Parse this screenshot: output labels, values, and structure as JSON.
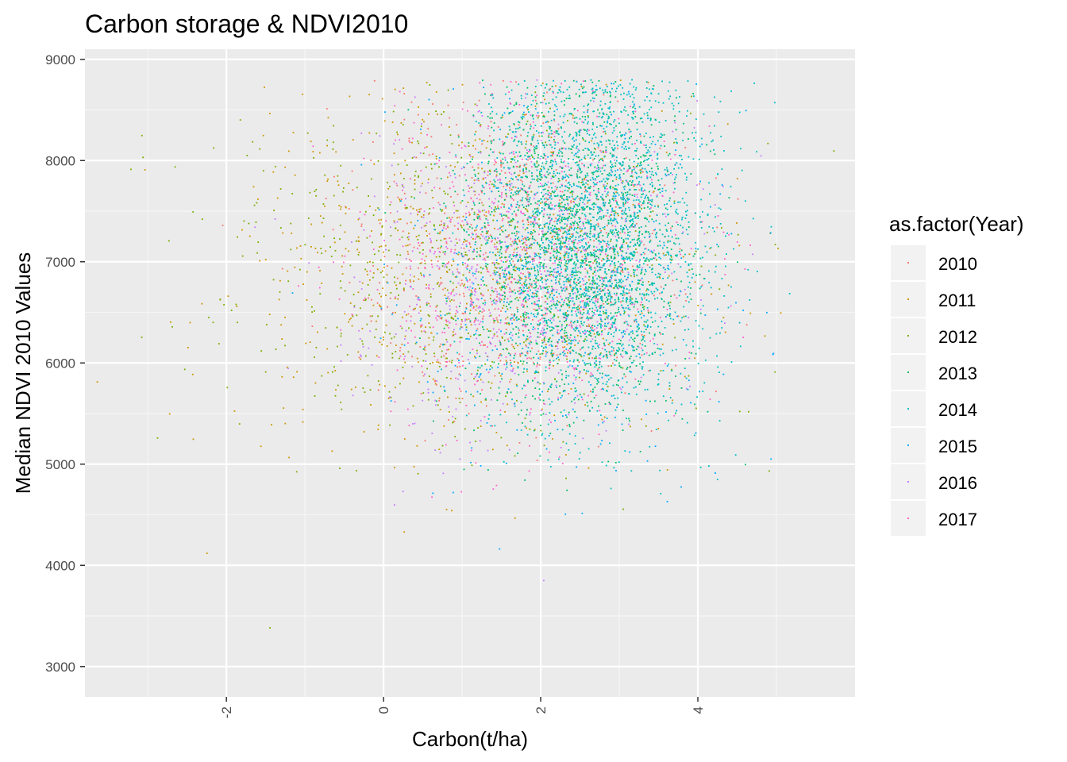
{
  "chart_data": {
    "type": "scatter",
    "title": "Carbon storage & NDVI2010",
    "xlabel": "Carbon(t/ha)",
    "ylabel": "Median NDVI 2010 Values",
    "xlim": [
      -3.8,
      6.0
    ],
    "ylim": [
      2700,
      9100
    ],
    "x_ticks": [
      -2,
      0,
      2,
      4
    ],
    "y_ticks": [
      3000,
      4000,
      5000,
      6000,
      7000,
      8000,
      9000
    ],
    "x_tick_labels": [
      "-2",
      "0",
      "2",
      "4"
    ],
    "y_tick_labels": [
      "3000",
      "4000",
      "5000",
      "6000",
      "7000",
      "8000",
      "9000"
    ],
    "grid": true,
    "legend_title": "as.factor(Year)",
    "legend_position": "right",
    "series": [
      {
        "name": "2010",
        "color": "#F8766D",
        "n_points": 700,
        "center": [
          1.7,
          7050
        ],
        "spread": [
          1.0,
          750
        ]
      },
      {
        "name": "2011",
        "color": "#CD9600",
        "n_points": 650,
        "center": [
          1.0,
          6900
        ],
        "spread": [
          1.5,
          850
        ]
      },
      {
        "name": "2012",
        "color": "#7CAE00",
        "n_points": 650,
        "center": [
          1.0,
          6900
        ],
        "spread": [
          1.5,
          850
        ]
      },
      {
        "name": "2013",
        "color": "#00BE67",
        "n_points": 1500,
        "center": [
          2.4,
          7100
        ],
        "spread": [
          0.7,
          800
        ]
      },
      {
        "name": "2014",
        "color": "#00BFC4",
        "n_points": 2200,
        "center": [
          2.7,
          7200
        ],
        "spread": [
          0.7,
          850
        ]
      },
      {
        "name": "2015",
        "color": "#00A9FF",
        "n_points": 450,
        "center": [
          2.2,
          6800
        ],
        "spread": [
          1.0,
          900
        ]
      },
      {
        "name": "2016",
        "color": "#C77CFF",
        "n_points": 650,
        "center": [
          1.8,
          6950
        ],
        "spread": [
          1.0,
          800
        ]
      },
      {
        "name": "2017",
        "color": "#FF61CC",
        "n_points": 650,
        "center": [
          1.9,
          7000
        ],
        "spread": [
          1.0,
          800
        ]
      }
    ]
  }
}
